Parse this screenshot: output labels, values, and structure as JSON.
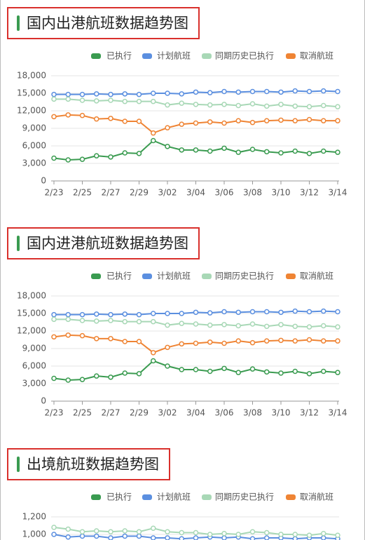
{
  "chart_data": [
    {
      "type": "line",
      "title": "国内出港航班数据趋势图",
      "legend": "top",
      "grid": true,
      "categories": [
        "2/23",
        null,
        "2/25",
        null,
        "2/27",
        null,
        "2/29",
        null,
        "3/02",
        null,
        "3/04",
        null,
        "3/06",
        null,
        "3/08",
        null,
        "3/10",
        null,
        "3/12",
        null,
        "3/14"
      ],
      "ylim": [
        0,
        18000
      ],
      "yticks": [
        0,
        {
          "value": 3000,
          "label": "3,000"
        },
        {
          "value": 6000,
          "label": "6,000"
        },
        {
          "value": 9000,
          "label": "9,000"
        },
        {
          "value": 12000,
          "label": "12,000"
        },
        {
          "value": 15000,
          "label": "15,000"
        },
        {
          "value": 18000,
          "label": "18,000"
        }
      ],
      "series": [
        {
          "name": "已执行",
          "color": "#3a9b50",
          "values": [
            3900,
            3600,
            3700,
            4300,
            4100,
            4800,
            4700,
            6900,
            5900,
            5300,
            5300,
            5100,
            5600,
            4900,
            5400,
            5000,
            4800,
            5100,
            4700,
            5100,
            4900
          ]
        },
        {
          "name": "计划航班",
          "color": "#5b8fe0",
          "values": [
            14800,
            14800,
            14800,
            14900,
            14800,
            14900,
            14800,
            15000,
            15000,
            14900,
            15200,
            15100,
            15300,
            15200,
            15300,
            15300,
            15200,
            15400,
            15300,
            15400,
            15300
          ]
        },
        {
          "name": "同期历史已执行",
          "color": "#a8d8b6",
          "values": [
            14000,
            14000,
            13800,
            13700,
            13800,
            13600,
            13600,
            13600,
            13000,
            13300,
            13100,
            13000,
            13100,
            12900,
            13200,
            12800,
            13100,
            12800,
            12700,
            12900,
            12700
          ]
        },
        {
          "name": "取消航班",
          "color": "#ef8434",
          "values": [
            11000,
            11300,
            11200,
            10600,
            10700,
            10200,
            10200,
            8200,
            9100,
            9700,
            9900,
            10100,
            9900,
            10300,
            10000,
            10300,
            10400,
            10300,
            10500,
            10300,
            10300
          ]
        }
      ]
    },
    {
      "type": "line",
      "title": "国内进港航班数据趋势图",
      "legend": "top",
      "grid": true,
      "categories": [
        "2/23",
        null,
        "2/25",
        null,
        "2/27",
        null,
        "2/29",
        null,
        "3/02",
        null,
        "3/04",
        null,
        "3/06",
        null,
        "3/08",
        null,
        "3/10",
        null,
        "3/12",
        null,
        "3/14"
      ],
      "ylim": [
        0,
        18000
      ],
      "yticks": [
        0,
        {
          "value": 3000,
          "label": "3,000"
        },
        {
          "value": 6000,
          "label": "6,000"
        },
        {
          "value": 9000,
          "label": "9,000"
        },
        {
          "value": 12000,
          "label": "12,000"
        },
        {
          "value": 15000,
          "label": "15,000"
        },
        {
          "value": 18000,
          "label": "18,000"
        }
      ],
      "series": [
        {
          "name": "已执行",
          "color": "#3a9b50",
          "values": [
            3900,
            3600,
            3700,
            4300,
            4100,
            4800,
            4700,
            6900,
            6000,
            5400,
            5400,
            5100,
            5600,
            4900,
            5500,
            5000,
            4800,
            5100,
            4700,
            5100,
            4900
          ]
        },
        {
          "name": "计划航班",
          "color": "#5b8fe0",
          "values": [
            14800,
            14800,
            14800,
            14900,
            14800,
            14900,
            14800,
            15000,
            15000,
            15000,
            15200,
            15100,
            15300,
            15200,
            15300,
            15300,
            15200,
            15400,
            15300,
            15400,
            15300
          ]
        },
        {
          "name": "同期历史已执行",
          "color": "#a8d8b6",
          "values": [
            14000,
            14000,
            13800,
            13700,
            13800,
            13600,
            13600,
            13600,
            13000,
            13300,
            13200,
            13000,
            13100,
            12900,
            13200,
            12800,
            13100,
            12800,
            12700,
            12900,
            12700
          ]
        },
        {
          "name": "取消航班",
          "color": "#ef8434",
          "values": [
            11000,
            11300,
            11200,
            10700,
            10700,
            10200,
            10200,
            8300,
            9200,
            9800,
            9900,
            10100,
            9900,
            10300,
            10000,
            10300,
            10400,
            10300,
            10500,
            10300,
            10300
          ]
        }
      ]
    },
    {
      "type": "line",
      "title": "出境航班数据趋势图",
      "legend": "top",
      "grid": true,
      "ylim": [
        0,
        1200
      ],
      "yticks": [
        {
          "value": 1000,
          "label": "1,000"
        },
        {
          "value": 1200,
          "label": "1,200"
        }
      ],
      "series": [
        {
          "name": "已执行",
          "color": "#3a9b50"
        },
        {
          "name": "计划航班",
          "color": "#5b8fe0",
          "values": [
            1000,
            970,
            980,
            980,
            960,
            980,
            980,
            960,
            960,
            950,
            960,
            970,
            960,
            970,
            950,
            960,
            960,
            950,
            960,
            960,
            950
          ]
        },
        {
          "name": "同期历史已执行",
          "color": "#a8d8b6",
          "values": [
            1080,
            1060,
            1030,
            1040,
            1030,
            1040,
            1030,
            1070,
            1030,
            1020,
            1020,
            1000,
            1010,
            1000,
            1030,
            1020,
            1000,
            1000,
            990,
            1010,
            990
          ]
        },
        {
          "name": "取消航班",
          "color": "#ef8434"
        }
      ]
    }
  ]
}
